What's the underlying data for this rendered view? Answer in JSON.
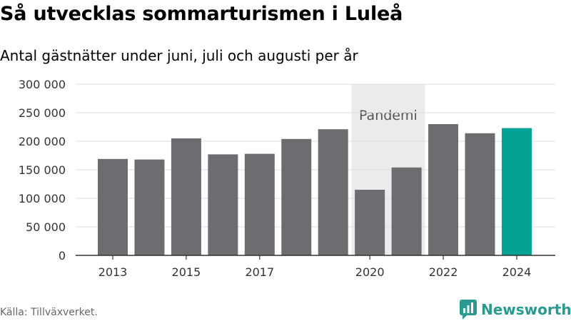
{
  "title": "Så utvecklas sommarturismen i Luleå",
  "subtitle": "Antal gästnätter under juni, juli och augusti per år",
  "source": "Källa: Tillväxverket.",
  "logo": {
    "text": "Newsworthy",
    "icon": "newsworthy-logo-icon"
  },
  "colors": {
    "bar": "#6d6c70",
    "highlight": "#02a395",
    "shade": "#ebebeb",
    "grid": "#dddddd",
    "axis": "#333333",
    "logo": "#2a9a91"
  },
  "chart_data": {
    "type": "bar",
    "title": "Så utvecklas sommarturismen i Luleå",
    "subtitle": "Antal gästnätter under juni, juli och augusti per år",
    "categories": [
      "2013",
      "2014",
      "2015",
      "2016",
      "2017",
      "2018",
      "2019",
      "2020",
      "2021",
      "2022",
      "2023",
      "2024"
    ],
    "values": [
      169000,
      168000,
      205000,
      177000,
      178000,
      204000,
      221000,
      115000,
      154000,
      230000,
      214000,
      223000
    ],
    "highlight": "2024",
    "x_tick_labels": [
      "2013",
      "",
      "2015",
      "",
      "2017",
      "",
      "",
      "2020",
      "",
      "2022",
      "",
      "2024"
    ],
    "y_ticks": [
      0,
      50000,
      100000,
      150000,
      200000,
      250000,
      300000
    ],
    "y_tick_labels": [
      "0",
      "50 000",
      "100 000",
      "150 000",
      "200 000",
      "250 000",
      "300 000"
    ],
    "ylim": [
      0,
      300000
    ],
    "xlabel": "",
    "ylabel": "",
    "grid": true,
    "annotation": {
      "label": "Pandemi",
      "span": [
        "2020",
        "2021"
      ]
    }
  }
}
